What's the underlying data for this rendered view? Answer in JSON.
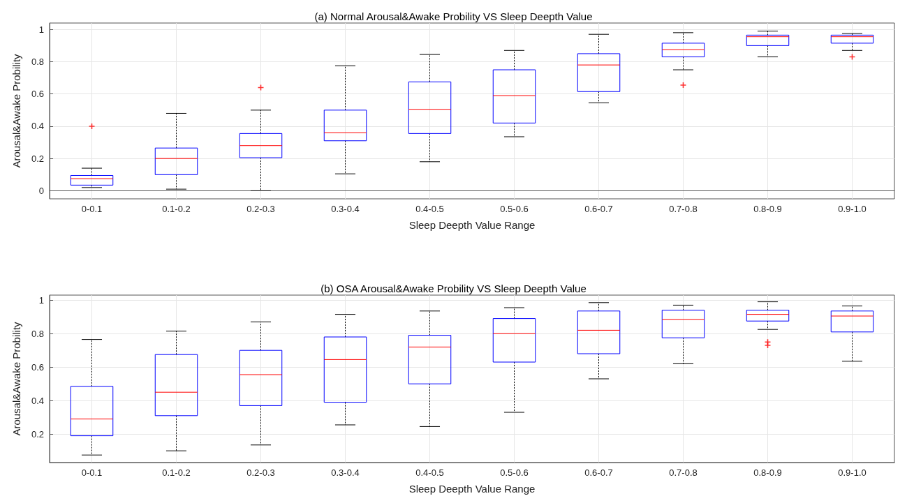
{
  "chart_data": [
    {
      "type": "box",
      "title": "(a) Normal Arousal&Awake Probility VS Sleep Deepth Value",
      "xlabel": "Sleep Deepth Value Range",
      "ylabel": "Arousal&Awake Probility",
      "categories": [
        "0-0.1",
        "0.1-0.2",
        "0.2-0.3",
        "0.3-0.4",
        "0.4-0.5",
        "0.5-0.6",
        "0.6-0.7",
        "0.7-0.8",
        "0.8-0.9",
        "0.9-1.0"
      ],
      "color": "#0000ff",
      "grid": true,
      "ylim": [
        -0.05,
        1.04
      ],
      "yticks": [
        0,
        0.2,
        0.4,
        0.6,
        0.8,
        1
      ],
      "boxes": [
        {
          "low": 0.02,
          "q1": 0.035,
          "median": 0.075,
          "q3": 0.095,
          "high": 0.14,
          "outliers": [
            0.4
          ]
        },
        {
          "low": 0.01,
          "q1": 0.1,
          "median": 0.2,
          "q3": 0.265,
          "high": 0.48
        },
        {
          "low": 0.0,
          "q1": 0.205,
          "median": 0.28,
          "q3": 0.355,
          "high": 0.5,
          "outliers": [
            0.64
          ]
        },
        {
          "low": 0.105,
          "q1": 0.31,
          "median": 0.36,
          "q3": 0.5,
          "high": 0.775
        },
        {
          "low": 0.18,
          "q1": 0.355,
          "median": 0.505,
          "q3": 0.675,
          "high": 0.845
        },
        {
          "low": 0.335,
          "q1": 0.42,
          "median": 0.59,
          "q3": 0.75,
          "high": 0.87
        },
        {
          "low": 0.545,
          "q1": 0.615,
          "median": 0.78,
          "q3": 0.85,
          "high": 0.97
        },
        {
          "low": 0.75,
          "q1": 0.83,
          "median": 0.875,
          "q3": 0.915,
          "high": 0.98,
          "outliers": [
            0.655
          ]
        },
        {
          "low": 0.83,
          "q1": 0.9,
          "median": 0.955,
          "q3": 0.965,
          "high": 0.99
        },
        {
          "low": 0.87,
          "q1": 0.915,
          "median": 0.955,
          "q3": 0.965,
          "high": 0.975,
          "outliers": [
            0.83
          ]
        }
      ]
    },
    {
      "type": "box",
      "title": "(b) OSA Arousal&Awake Probility VS Sleep Deepth Value",
      "xlabel": "Sleep Deepth Value Range",
      "ylabel": "Arousal&Awake Probility",
      "categories": [
        "0-0.1",
        "0.1-0.2",
        "0.2-0.3",
        "0.3-0.4",
        "0.4-0.5",
        "0.5-0.6",
        "0.6-0.7",
        "0.7-0.8",
        "0.8-0.9",
        "0.9-1.0"
      ],
      "color": "#0000ff",
      "grid": true,
      "ylim": [
        0.03,
        1.03
      ],
      "yticks": [
        0.2,
        0.4,
        0.6,
        0.8,
        1
      ],
      "boxes": [
        {
          "low": 0.075,
          "q1": 0.19,
          "median": 0.29,
          "q3": 0.485,
          "high": 0.765
        },
        {
          "low": 0.1,
          "q1": 0.31,
          "median": 0.45,
          "q3": 0.675,
          "high": 0.815
        },
        {
          "low": 0.135,
          "q1": 0.37,
          "median": 0.555,
          "q3": 0.7,
          "high": 0.87
        },
        {
          "low": 0.255,
          "q1": 0.39,
          "median": 0.645,
          "q3": 0.78,
          "high": 0.915
        },
        {
          "low": 0.245,
          "q1": 0.5,
          "median": 0.72,
          "q3": 0.79,
          "high": 0.935
        },
        {
          "low": 0.33,
          "q1": 0.63,
          "median": 0.8,
          "q3": 0.89,
          "high": 0.955
        },
        {
          "low": 0.53,
          "q1": 0.68,
          "median": 0.82,
          "q3": 0.935,
          "high": 0.985
        },
        {
          "low": 0.62,
          "q1": 0.775,
          "median": 0.885,
          "q3": 0.94,
          "high": 0.97
        },
        {
          "low": 0.825,
          "q1": 0.875,
          "median": 0.915,
          "q3": 0.94,
          "high": 0.99,
          "outliers": [
            0.75,
            0.73
          ]
        },
        {
          "low": 0.635,
          "q1": 0.81,
          "median": 0.905,
          "q3": 0.935,
          "high": 0.965
        }
      ]
    }
  ]
}
